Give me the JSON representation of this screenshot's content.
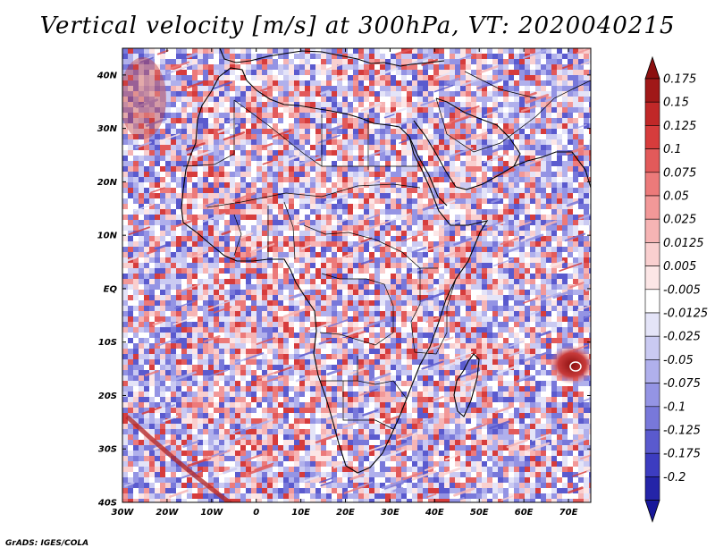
{
  "title": "Vertical velocity [m/s] at 300hPa, VT: 2020040215",
  "credit": "GrADS: IGES/COLA",
  "map": {
    "lon_range": [
      -30,
      75
    ],
    "lat_range": [
      -40,
      45
    ],
    "lat_ticks": [
      "40N",
      "30N",
      "20N",
      "10N",
      "EQ",
      "10S",
      "20S",
      "30S",
      "40S"
    ],
    "lon_ticks": [
      "30W",
      "20W",
      "10W",
      "0",
      "10E",
      "20E",
      "30E",
      "40E",
      "50E",
      "60E",
      "70E"
    ]
  },
  "colorbar": {
    "levels": [
      {
        "label": "0.175",
        "color": "#a01818"
      },
      {
        "label": "0.15",
        "color": "#c02828"
      },
      {
        "label": "0.125",
        "color": "#d63c3c"
      },
      {
        "label": "0.1",
        "color": "#e25a5a"
      },
      {
        "label": "0.075",
        "color": "#ec7a7a"
      },
      {
        "label": "0.05",
        "color": "#f29898"
      },
      {
        "label": "0.025",
        "color": "#f6b4b4"
      },
      {
        "label": "0.0125",
        "color": "#f9cfcf"
      },
      {
        "label": "0.005",
        "color": "#fce6e6"
      },
      {
        "label": "-0.005",
        "color": "#ffffff"
      },
      {
        "label": "-0.0125",
        "color": "#e4e4f8"
      },
      {
        "label": "-0.025",
        "color": "#cacaf2"
      },
      {
        "label": "-0.05",
        "color": "#b0b0ec"
      },
      {
        "label": "-0.075",
        "color": "#9494e4"
      },
      {
        "label": "-0.1",
        "color": "#7878da"
      },
      {
        "label": "-0.125",
        "color": "#5a5ace"
      },
      {
        "label": "-0.175",
        "color": "#3c3cc0"
      },
      {
        "label": "-0.2",
        "color": "#2424a8"
      }
    ],
    "top_color": "#8c1010",
    "bottom_color": "#18189a"
  }
}
